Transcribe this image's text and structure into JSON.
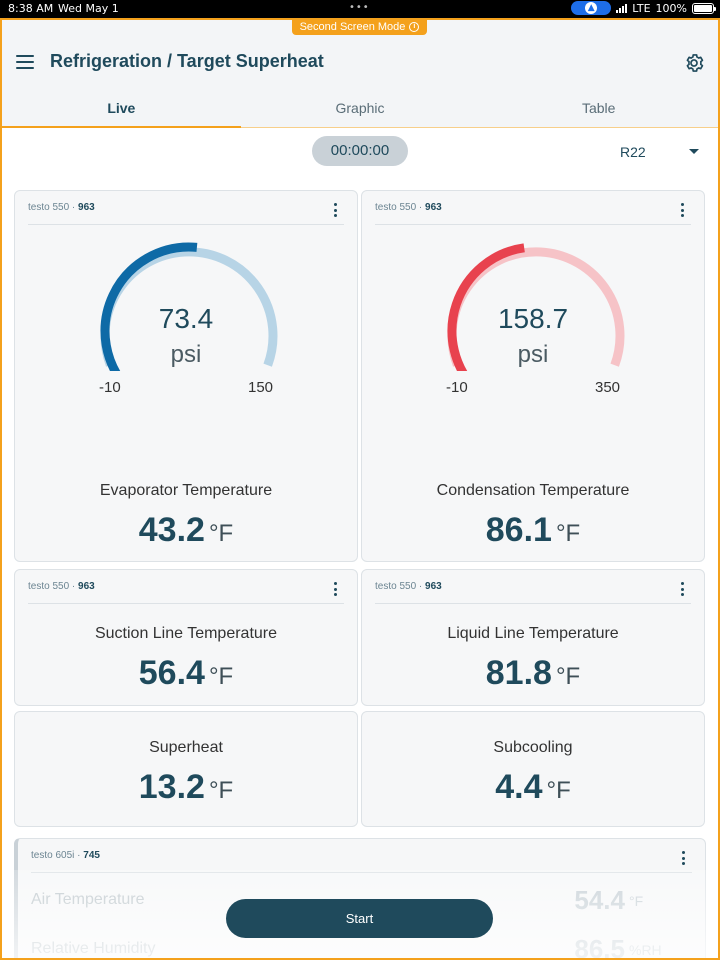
{
  "status_bar": {
    "time": "8:38 AM",
    "date": "Wed May 1",
    "dots": "•••",
    "network": "LTE",
    "battery": "100%",
    "location_icon": "location-arrow-icon"
  },
  "second_screen_label": "Second Screen Mode",
  "header": {
    "title": "Refrigeration / Target Superheat",
    "menu_icon": "menu-icon",
    "settings_icon": "gear-icon"
  },
  "tabs": [
    {
      "label": "Live",
      "active": true
    },
    {
      "label": "Graphic",
      "active": false
    },
    {
      "label": "Table",
      "active": false
    }
  ],
  "timer": "00:00:00",
  "refrigerant": "R22",
  "colors": {
    "primary": "#1f4a5c",
    "accent": "#f4a11c",
    "gauge_blue": "#0e6aa6",
    "gauge_blue_light": "#b7d4e6",
    "gauge_red": "#e8424e",
    "gauge_red_light": "#f6c3c7"
  },
  "cards": {
    "evaporator": {
      "device": "testo 550 · ",
      "device_id": "963",
      "gauge": {
        "value": "73.4",
        "unit": "psi",
        "min": "-10",
        "max": "150",
        "fraction": 0.52
      },
      "label": "Evaporator Temperature",
      "value": "43.2",
      "unit": "°F"
    },
    "condensation": {
      "device": "testo 550 · ",
      "device_id": "963",
      "gauge": {
        "value": "158.7",
        "unit": "psi",
        "min": "-10",
        "max": "350",
        "fraction": 0.47
      },
      "label": "Condensation Temperature",
      "value": "86.1",
      "unit": "°F"
    },
    "suction": {
      "device": "testo 550 · ",
      "device_id": "963",
      "label": "Suction Line Temperature",
      "value": "56.4",
      "unit": "°F"
    },
    "liquid": {
      "device": "testo 550 · ",
      "device_id": "963",
      "label": "Liquid Line Temperature",
      "value": "81.8",
      "unit": "°F"
    },
    "superheat": {
      "label": "Superheat",
      "value": "13.2",
      "unit": "°F"
    },
    "subcooling": {
      "label": "Subcooling",
      "value": "4.4",
      "unit": "°F"
    },
    "testo605": {
      "device": "testo 605i · ",
      "device_id": "745",
      "rows": [
        {
          "label": "Air Temperature",
          "value": "54.4",
          "unit": "°F"
        },
        {
          "label": "Relative Humidity",
          "value": "86.5",
          "unit": "%RH"
        }
      ]
    }
  },
  "start_button": "Start"
}
